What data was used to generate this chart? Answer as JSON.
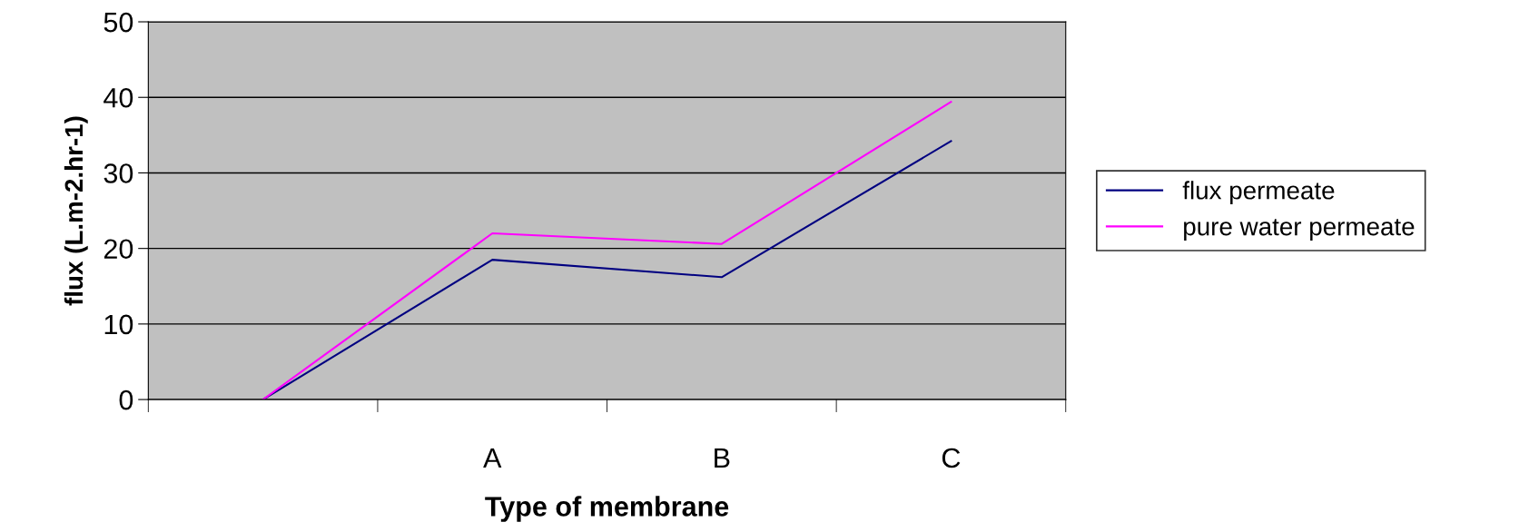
{
  "chart_data": {
    "type": "line",
    "xlabel": "Type of membrane",
    "ylabel": "flux (L.m-2.hr-1)",
    "categories": [
      null,
      "A",
      "B",
      "C"
    ],
    "series": [
      {
        "name": "flux permeate",
        "color": "#000080",
        "values": [
          0,
          18.5,
          16.2,
          34.2
        ]
      },
      {
        "name": "pure water permeate",
        "color": "#ff00ff",
        "values": [
          0,
          22,
          20.6,
          39.4
        ]
      }
    ],
    "ylim": [
      0,
      50
    ],
    "yticks": [
      0,
      10,
      20,
      30,
      40,
      50
    ],
    "grid": "y",
    "legend": "right",
    "marker": "none",
    "line_style": "solid"
  }
}
